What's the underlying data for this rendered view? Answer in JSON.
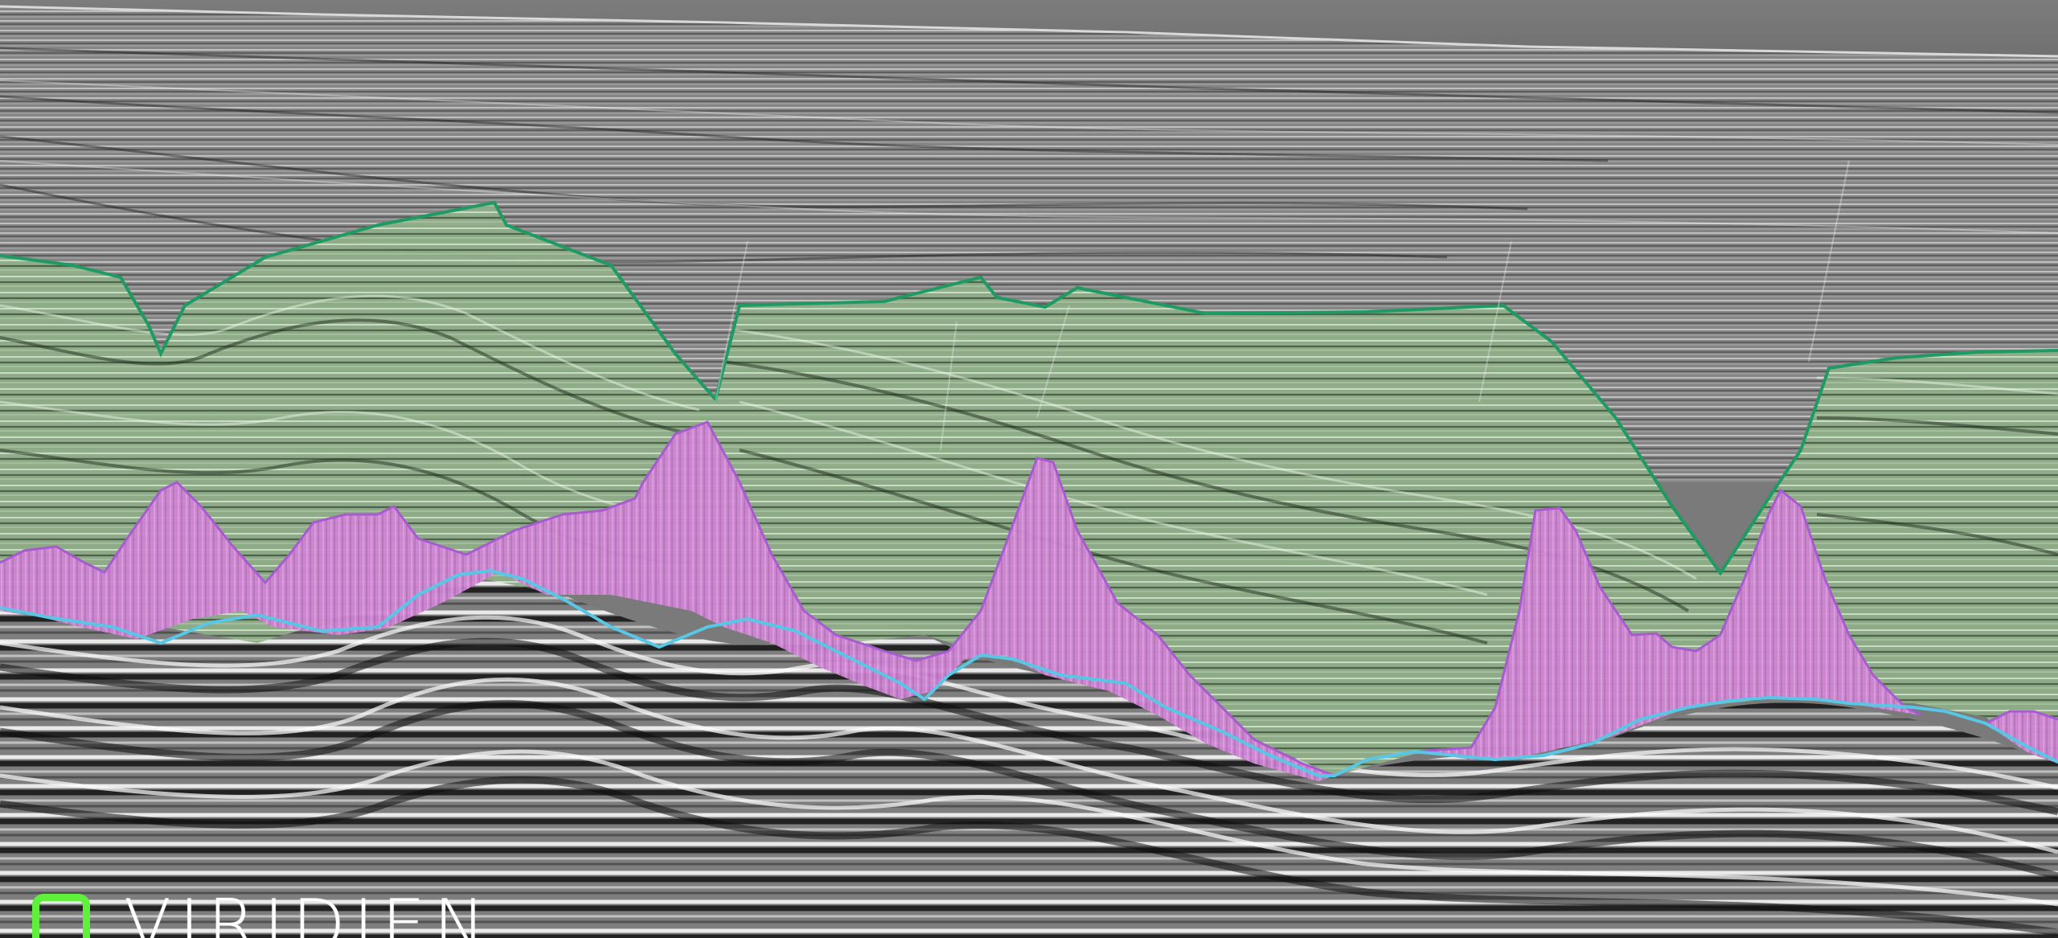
{
  "image": {
    "subject": "seismic-section",
    "background_color": "#7a7a7a",
    "colors": {
      "green_layer_fill": "#9bbf94",
      "green_horizon_line": "#1f9a63",
      "magenta_body_fill": "#d58ad8",
      "magenta_outline": "#a85bd0",
      "cyan_horizon_line": "#58c7e6",
      "seismic_light": "#f2f2f2",
      "seismic_dark": "#1a1a1a"
    }
  },
  "logo": {
    "text": "VIRIDIEN",
    "color": "#ffffff",
    "mark_color": "#5ef03a"
  }
}
